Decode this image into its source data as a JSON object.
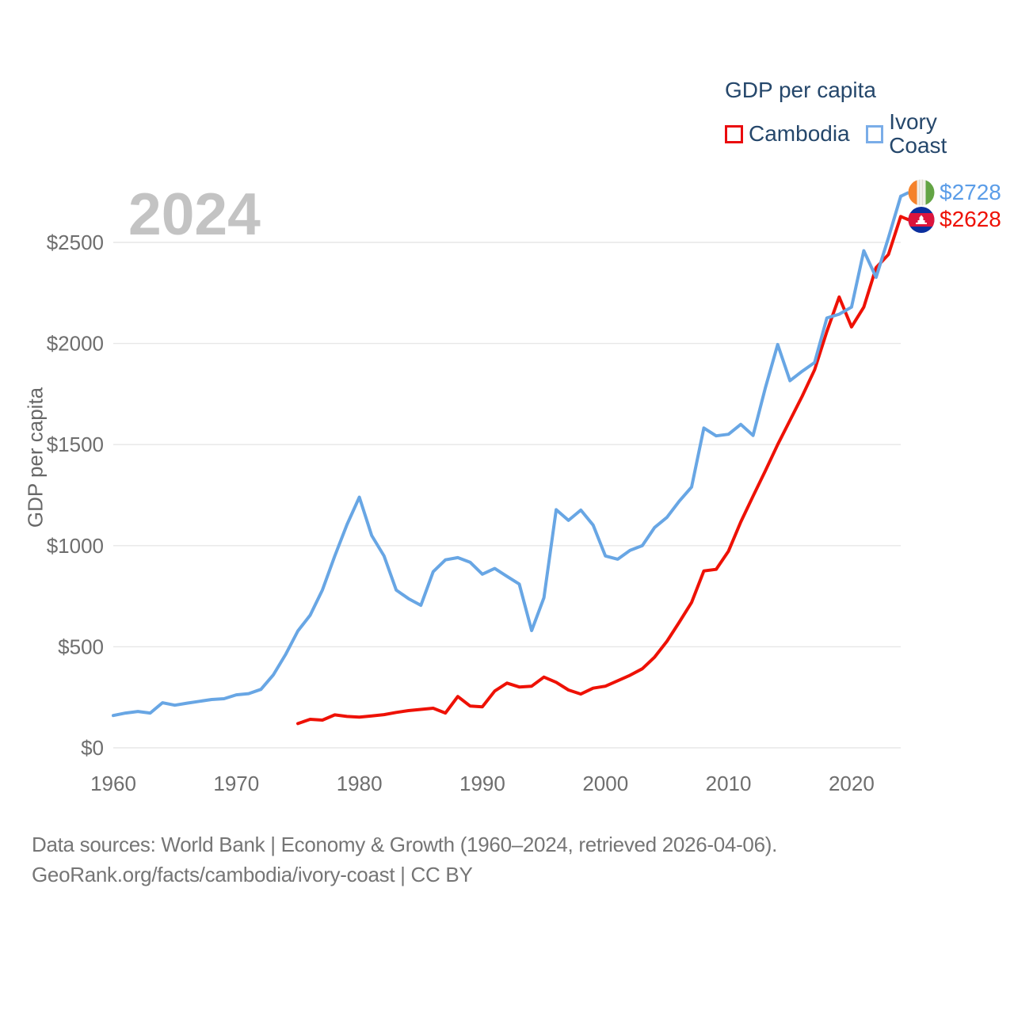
{
  "watermark": "2024",
  "legend": {
    "title": "GDP per capita",
    "items": [
      {
        "label": "Cambodia",
        "color": "#ea0b0e"
      },
      {
        "label": "Ivory Coast",
        "color": "#7aade8"
      }
    ]
  },
  "y_axis": {
    "title": "GDP per capita",
    "tick_labels": [
      "$0",
      "$500",
      "$1000",
      "$1500",
      "$2000",
      "$2500"
    ],
    "tick_values": [
      0,
      500,
      1000,
      1500,
      2000,
      2500
    ]
  },
  "x_axis": {
    "tick_labels": [
      "1960",
      "1970",
      "1980",
      "1990",
      "2000",
      "2010",
      "2020"
    ],
    "tick_values": [
      1960,
      1970,
      1980,
      1990,
      2000,
      2010,
      2020
    ]
  },
  "end_labels": [
    {
      "series": "Ivory Coast",
      "value": "$2728",
      "color": "#5b9de8",
      "flag": "ivory-coast-flag"
    },
    {
      "series": "Cambodia",
      "value": "$2628",
      "color": "#ee1105",
      "flag": "cambodia-flag"
    }
  ],
  "footer": {
    "line1": "Data sources: World Bank | Economy & Growth (1960–2024, retrieved 2026-04-06).",
    "line2": "GeoRank.org/facts/cambodia/ivory-coast | CC BY"
  },
  "flag_colors": {
    "ivory_coast": {
      "orange": "#f5822b",
      "white": "#f1efe8",
      "green": "#63a444"
    },
    "cambodia": {
      "blue": "#0b2f9e",
      "red": "#dc143c",
      "white": "#ffffff"
    }
  },
  "chart_data": {
    "type": "line",
    "title": "GDP per capita",
    "xlabel": "",
    "ylabel": "GDP per capita",
    "xlim": [
      1960,
      2024
    ],
    "ylim": [
      0,
      2790
    ],
    "grid": "horizontal",
    "legend_position": "top-right",
    "x": [
      1960,
      1961,
      1962,
      1963,
      1964,
      1965,
      1966,
      1967,
      1968,
      1969,
      1970,
      1971,
      1972,
      1973,
      1974,
      1975,
      1976,
      1977,
      1978,
      1979,
      1980,
      1981,
      1982,
      1983,
      1984,
      1985,
      1986,
      1987,
      1988,
      1989,
      1990,
      1991,
      1992,
      1993,
      1994,
      1995,
      1996,
      1997,
      1998,
      1999,
      2000,
      2001,
      2002,
      2003,
      2004,
      2005,
      2006,
      2007,
      2008,
      2009,
      2010,
      2011,
      2012,
      2013,
      2014,
      2015,
      2016,
      2017,
      2018,
      2019,
      2020,
      2021,
      2022,
      2023,
      2024
    ],
    "series": [
      {
        "name": "Cambodia",
        "color": "#ee1105",
        "end_value": 2628,
        "values": [
          null,
          null,
          null,
          null,
          null,
          null,
          null,
          null,
          null,
          null,
          null,
          null,
          null,
          null,
          null,
          120,
          141,
          137,
          163,
          155,
          152,
          158,
          164,
          175,
          184,
          190,
          196,
          172,
          254,
          207,
          203,
          281,
          320,
          301,
          305,
          350,
          324,
          286,
          266,
          295,
          305,
          332,
          359,
          391,
          449,
          527,
          621,
          719,
          875,
          883,
          973,
          1117,
          1245,
          1370,
          1500,
          1620,
          1740,
          1870,
          2060,
          2230,
          2082,
          2180,
          2375,
          2440,
          2628
        ]
      },
      {
        "name": "Ivory Coast",
        "color": "#68a6e4",
        "end_value": 2728,
        "values": [
          160,
          172,
          180,
          172,
          223,
          211,
          221,
          230,
          239,
          243,
          262,
          268,
          289,
          360,
          461,
          578,
          656,
          781,
          949,
          1105,
          1240,
          1050,
          950,
          780,
          738,
          705,
          871,
          930,
          941,
          918,
          859,
          887,
          848,
          810,
          580,
          742,
          1178,
          1125,
          1176,
          1102,
          949,
          933,
          977,
          1000,
          1090,
          1140,
          1220,
          1290,
          1582,
          1543,
          1551,
          1600,
          1545,
          1780,
          1995,
          1816,
          1863,
          1906,
          2126,
          2145,
          2180,
          2459,
          2327,
          2523,
          2728
        ]
      }
    ]
  }
}
